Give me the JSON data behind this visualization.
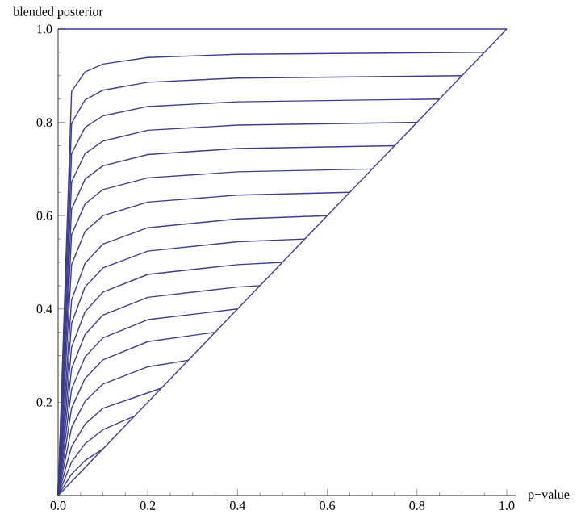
{
  "chart_data": {
    "type": "line",
    "xlabel": "p−value",
    "ylabel": "blended posterior",
    "xlim": [
      0,
      1.02
    ],
    "ylim": [
      0,
      1.0
    ],
    "xticks": [
      {
        "value": 0,
        "label": "0.0"
      },
      0.2,
      0.4,
      0.6,
      0.8,
      {
        "value": 1,
        "label": "1.0"
      }
    ],
    "yticks": [
      0.2,
      0.4,
      0.6,
      0.8,
      {
        "value": 1,
        "label": "1.0"
      }
    ],
    "grid": false,
    "marker": "none",
    "line_style": "solid",
    "series": [
      {
        "color": "#3d3d8f",
        "x": [
          0,
          1
        ],
        "values": [
          0,
          1
        ]
      },
      {
        "color": "#3d3d8f",
        "x": [
          0,
          1
        ],
        "values": [
          1,
          1
        ]
      },
      {
        "color": "#3d3d8f",
        "x": [
          0,
          0.03,
          0.06,
          0.1,
          0.2,
          0.4,
          0.95
        ],
        "values": [
          0,
          0.866,
          0.908,
          0.925,
          0.939,
          0.946,
          0.95
        ]
      },
      {
        "color": "#3d3d8f",
        "x": [
          0,
          0.03,
          0.06,
          0.1,
          0.2,
          0.4,
          0.9
        ],
        "values": [
          0,
          0.798,
          0.848,
          0.869,
          0.886,
          0.895,
          0.9
        ]
      },
      {
        "color": "#3d3d8f",
        "x": [
          0,
          0.03,
          0.06,
          0.1,
          0.2,
          0.4,
          0.85
        ],
        "values": [
          0,
          0.733,
          0.789,
          0.814,
          0.834,
          0.844,
          0.85
        ]
      },
      {
        "color": "#3d3d8f",
        "x": [
          0,
          0.03,
          0.06,
          0.1,
          0.2,
          0.4,
          0.8
        ],
        "values": [
          0,
          0.672,
          0.733,
          0.76,
          0.783,
          0.794,
          0.8
        ]
      },
      {
        "color": "#3d3d8f",
        "x": [
          0,
          0.03,
          0.06,
          0.1,
          0.2,
          0.4,
          0.75
        ],
        "values": [
          0,
          0.614,
          0.678,
          0.707,
          0.731,
          0.744,
          0.75
        ]
      },
      {
        "color": "#3d3d8f",
        "x": [
          0,
          0.03,
          0.06,
          0.1,
          0.2,
          0.4,
          0.7
        ],
        "values": [
          0,
          0.559,
          0.625,
          0.656,
          0.681,
          0.694,
          0.7
        ]
      },
      {
        "color": "#3d3d8f",
        "x": [
          0,
          0.03,
          0.06,
          0.1,
          0.2,
          0.4,
          0.65
        ],
        "values": [
          0,
          0.495,
          0.566,
          0.6,
          0.629,
          0.644,
          0.65
        ]
      },
      {
        "color": "#3d3d8f",
        "x": [
          0,
          0.03,
          0.06,
          0.1,
          0.2,
          0.4,
          0.6
        ],
        "values": [
          0,
          0.419,
          0.498,
          0.539,
          0.574,
          0.593,
          0.6
        ]
      },
      {
        "color": "#3d3d8f",
        "x": [
          0,
          0.03,
          0.06,
          0.1,
          0.2,
          0.4,
          0.55
        ],
        "values": [
          0,
          0.369,
          0.447,
          0.488,
          0.524,
          0.544,
          0.55
        ]
      },
      {
        "color": "#3d3d8f",
        "x": [
          0,
          0.03,
          0.06,
          0.1,
          0.2,
          0.4,
          0.5
        ],
        "values": [
          0,
          0.318,
          0.394,
          0.436,
          0.474,
          0.495,
          0.5
        ]
      },
      {
        "color": "#3d3d8f",
        "x": [
          0,
          0.03,
          0.06,
          0.1,
          0.2,
          0.4,
          0.45
        ],
        "values": [
          0,
          0.272,
          0.345,
          0.387,
          0.425,
          0.447,
          0.45
        ]
      },
      {
        "color": "#3d3d8f",
        "x": [
          0,
          0.03,
          0.06,
          0.1,
          0.2,
          0.4
        ],
        "values": [
          0,
          0.228,
          0.297,
          0.338,
          0.377,
          0.4
        ]
      },
      {
        "color": "#3d3d8f",
        "x": [
          0,
          0.03,
          0.06,
          0.1,
          0.2,
          0.35
        ],
        "values": [
          0,
          0.187,
          0.251,
          0.291,
          0.33,
          0.35
        ]
      },
      {
        "color": "#3d3d8f",
        "x": [
          0,
          0.03,
          0.06,
          0.1,
          0.2,
          0.29
        ],
        "values": [
          0,
          0.146,
          0.202,
          0.239,
          0.276,
          0.29
        ]
      },
      {
        "color": "#3d3d8f",
        "x": [
          0,
          0.03,
          0.06,
          0.1,
          0.23
        ],
        "values": [
          0,
          0.105,
          0.153,
          0.187,
          0.23
        ]
      },
      {
        "color": "#3d3d8f",
        "x": [
          0,
          0.03,
          0.06,
          0.1,
          0.17
        ],
        "values": [
          0,
          0.072,
          0.111,
          0.141,
          0.17
        ]
      },
      {
        "color": "#3d3d8f",
        "x": [
          0,
          0.03,
          0.06,
          0.1
        ],
        "values": [
          0,
          0.046,
          0.075,
          0.1
        ]
      }
    ]
  }
}
